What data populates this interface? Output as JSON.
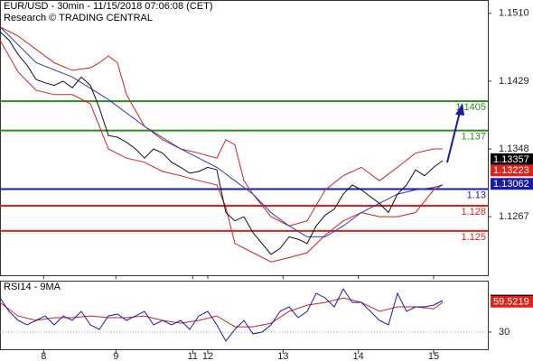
{
  "chart_data": [
    {
      "type": "line",
      "title": "EUR/USD - 30min - 11/15/2018 07:06:08 (CET)",
      "subtitle": "Research © TRADING CENTRAL",
      "xlim": [
        0,
        324
      ],
      "ylim": [
        1.1197,
        1.1526
      ],
      "yticks": [
        {
          "value": 1.151,
          "label": "1.1510"
        },
        1.1429,
        1.1348,
        1.1267
      ],
      "series": [
        {
          "color": "#cc2222",
          "x": [
            0,
            12,
            24,
            36,
            48,
            60,
            66,
            72,
            78,
            84,
            96,
            108,
            120,
            132,
            144,
            150,
            156,
            162,
            168,
            180,
            192,
            204,
            216,
            228,
            240,
            252,
            264,
            276,
            288,
            294
          ],
          "values": [
            1.1494,
            1.1483,
            1.1467,
            1.1451,
            1.1442,
            1.1445,
            1.1451,
            1.1459,
            1.1451,
            1.1413,
            1.1375,
            1.1359,
            1.1348,
            1.1343,
            1.1337,
            1.1359,
            1.1353,
            1.131,
            1.1294,
            1.1267,
            1.1256,
            1.1262,
            1.1299,
            1.1316,
            1.1326,
            1.131,
            1.1326,
            1.1343,
            1.1348,
            1.1348
          ]
        },
        {
          "color": "#cc2222",
          "x": [
            0,
            12,
            24,
            36,
            48,
            60,
            72,
            84,
            96,
            108,
            120,
            132,
            144,
            150,
            156,
            168,
            180,
            192,
            204,
            216,
            228,
            240,
            252,
            264,
            276,
            288,
            294
          ],
          "values": [
            1.1478,
            1.144,
            1.1418,
            1.1413,
            1.1413,
            1.1402,
            1.1348,
            1.1337,
            1.1332,
            1.1321,
            1.1316,
            1.131,
            1.1305,
            1.1278,
            1.1235,
            1.1224,
            1.1213,
            1.1218,
            1.1224,
            1.1245,
            1.1262,
            1.1272,
            1.1267,
            1.1267,
            1.1272,
            1.1299,
            1.1305
          ]
        },
        {
          "color": "#2a3bb5",
          "x": [
            0,
            24,
            48,
            72,
            96,
            120,
            144,
            156,
            168,
            180,
            192,
            204,
            216,
            228,
            240,
            252,
            264,
            276,
            288,
            294
          ],
          "values": [
            1.1494,
            1.1451,
            1.1434,
            1.1407,
            1.1375,
            1.1348,
            1.1326,
            1.131,
            1.1294,
            1.1272,
            1.1256,
            1.1243,
            1.1243,
            1.1256,
            1.1272,
            1.1283,
            1.1294,
            1.1299,
            1.1302,
            1.1305
          ]
        },
        {
          "color": "#111111",
          "x": [
            0,
            6,
            12,
            18,
            24,
            30,
            36,
            42,
            48,
            54,
            60,
            66,
            72,
            78,
            84,
            90,
            96,
            102,
            108,
            114,
            120,
            126,
            132,
            138,
            144,
            150,
            156,
            162,
            168,
            174,
            180,
            186,
            192,
            198,
            204,
            210,
            216,
            222,
            228,
            234,
            240,
            246,
            252,
            258,
            264,
            270,
            276,
            282,
            288,
            294
          ],
          "values": [
            1.1488,
            1.1478,
            1.1461,
            1.1448,
            1.1431,
            1.1427,
            1.1424,
            1.1429,
            1.1421,
            1.1434,
            1.1424,
            1.1397,
            1.1364,
            1.1362,
            1.1356,
            1.1348,
            1.1337,
            1.1348,
            1.1343,
            1.1332,
            1.1326,
            1.1319,
            1.1321,
            1.1326,
            1.1323,
            1.1272,
            1.1262,
            1.1267,
            1.1248,
            1.1235,
            1.1222,
            1.1229,
            1.1243,
            1.124,
            1.1235,
            1.1256,
            1.1269,
            1.1276,
            1.1294,
            1.1305,
            1.1299,
            1.1291,
            1.1283,
            1.1272,
            1.1294,
            1.1305,
            1.1323,
            1.1316,
            1.1326,
            1.1334
          ]
        }
      ],
      "levels": [
        {
          "value": 1.1405,
          "color": "#2e8b22"
        },
        {
          "value": 1.137,
          "color": "#2e8b22"
        },
        {
          "value": 1.13,
          "color": "#1a1aa6"
        },
        {
          "value": 1.128,
          "color": "#e0201b"
        },
        {
          "value": 1.125,
          "color": "#e0201b"
        }
      ],
      "markers": [
        {
          "value": 1.13357,
          "color": "#000000"
        },
        {
          "value": 1.13223,
          "color": "#e0201b"
        },
        {
          "value": 1.13062,
          "color": "#1a1aa6"
        }
      ]
    },
    {
      "type": "line",
      "title": "RSI14 - 9MA",
      "grid": true,
      "xlim": [
        0,
        324
      ],
      "ylim": [
        12.5,
        79
      ],
      "yticks": [
        30
      ],
      "xticks": [
        {
          "value": 29,
          "label": "8"
        },
        {
          "value": 77,
          "label": "9"
        },
        {
          "value": 128,
          "label": "11"
        },
        {
          "value": 138,
          "label": "12"
        },
        {
          "value": 188,
          "label": "13"
        },
        {
          "value": 238,
          "label": "14"
        },
        {
          "value": 288,
          "label": "15"
        }
      ],
      "series": [
        {
          "color": "#cc2222",
          "x": [
            0,
            12,
            24,
            36,
            48,
            60,
            72,
            84,
            96,
            108,
            120,
            132,
            144,
            156,
            168,
            180,
            192,
            204,
            216,
            228,
            240,
            252,
            264,
            276,
            288,
            294
          ],
          "values": [
            58.8,
            45.7,
            41.4,
            44,
            44,
            45.7,
            44,
            44,
            45.7,
            41.4,
            38.7,
            41.4,
            45.7,
            35.2,
            35.2,
            38.7,
            50.1,
            56.2,
            58.8,
            63.2,
            58.8,
            50.1,
            54.5,
            54.5,
            52.7,
            58.8
          ]
        },
        {
          "color": "#1a1aa6",
          "x": [
            0,
            6,
            12,
            18,
            24,
            30,
            36,
            42,
            48,
            54,
            60,
            66,
            72,
            78,
            84,
            90,
            96,
            102,
            108,
            114,
            120,
            126,
            132,
            138,
            144,
            150,
            156,
            162,
            168,
            174,
            180,
            186,
            192,
            198,
            204,
            210,
            216,
            222,
            228,
            234,
            240,
            246,
            252,
            258,
            264,
            270,
            276,
            282,
            288,
            294
          ],
          "values": [
            63.2,
            50.1,
            41.4,
            37,
            41.4,
            45.7,
            37,
            45.7,
            41.4,
            50.1,
            37,
            32.6,
            45.7,
            47.5,
            41.4,
            45.7,
            50.1,
            37,
            41.4,
            37,
            41.4,
            32.6,
            45.7,
            50.1,
            37,
            21.3,
            32.6,
            41.4,
            28.3,
            30,
            37,
            50.1,
            54.5,
            44,
            50.1,
            67.6,
            63.2,
            54.5,
            71.9,
            58.8,
            58.8,
            50.1,
            41.4,
            37,
            67.6,
            50.1,
            54.5,
            54.5,
            56.2,
            60.6
          ]
        }
      ],
      "markers": [
        {
          "value": 60.5771,
          "color": "#000000"
        },
        {
          "value": 59.5219,
          "color": "#e0201b"
        }
      ]
    }
  ]
}
